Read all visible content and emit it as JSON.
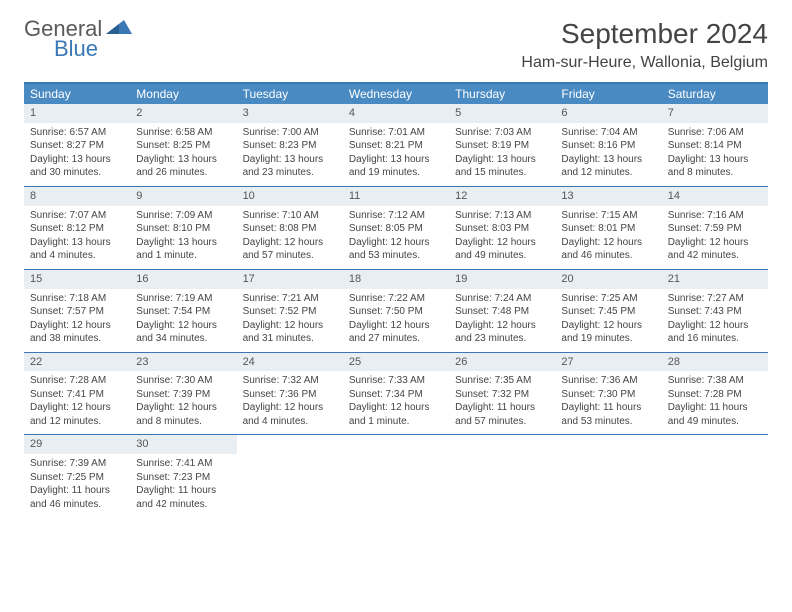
{
  "logo": {
    "general": "General",
    "blue": "Blue"
  },
  "title": "September 2024",
  "location": "Ham-sur-Heure, Wallonia, Belgium",
  "colors": {
    "header_bg": "#4a8ac2",
    "border": "#3a78b5",
    "daynum_bg": "#e9eef3",
    "text": "#454545"
  },
  "day_names": [
    "Sunday",
    "Monday",
    "Tuesday",
    "Wednesday",
    "Thursday",
    "Friday",
    "Saturday"
  ],
  "days": [
    {
      "n": "1",
      "sr": "Sunrise: 6:57 AM",
      "ss": "Sunset: 8:27 PM",
      "dl": "Daylight: 13 hours and 30 minutes."
    },
    {
      "n": "2",
      "sr": "Sunrise: 6:58 AM",
      "ss": "Sunset: 8:25 PM",
      "dl": "Daylight: 13 hours and 26 minutes."
    },
    {
      "n": "3",
      "sr": "Sunrise: 7:00 AM",
      "ss": "Sunset: 8:23 PM",
      "dl": "Daylight: 13 hours and 23 minutes."
    },
    {
      "n": "4",
      "sr": "Sunrise: 7:01 AM",
      "ss": "Sunset: 8:21 PM",
      "dl": "Daylight: 13 hours and 19 minutes."
    },
    {
      "n": "5",
      "sr": "Sunrise: 7:03 AM",
      "ss": "Sunset: 8:19 PM",
      "dl": "Daylight: 13 hours and 15 minutes."
    },
    {
      "n": "6",
      "sr": "Sunrise: 7:04 AM",
      "ss": "Sunset: 8:16 PM",
      "dl": "Daylight: 13 hours and 12 minutes."
    },
    {
      "n": "7",
      "sr": "Sunrise: 7:06 AM",
      "ss": "Sunset: 8:14 PM",
      "dl": "Daylight: 13 hours and 8 minutes."
    },
    {
      "n": "8",
      "sr": "Sunrise: 7:07 AM",
      "ss": "Sunset: 8:12 PM",
      "dl": "Daylight: 13 hours and 4 minutes."
    },
    {
      "n": "9",
      "sr": "Sunrise: 7:09 AM",
      "ss": "Sunset: 8:10 PM",
      "dl": "Daylight: 13 hours and 1 minute."
    },
    {
      "n": "10",
      "sr": "Sunrise: 7:10 AM",
      "ss": "Sunset: 8:08 PM",
      "dl": "Daylight: 12 hours and 57 minutes."
    },
    {
      "n": "11",
      "sr": "Sunrise: 7:12 AM",
      "ss": "Sunset: 8:05 PM",
      "dl": "Daylight: 12 hours and 53 minutes."
    },
    {
      "n": "12",
      "sr": "Sunrise: 7:13 AM",
      "ss": "Sunset: 8:03 PM",
      "dl": "Daylight: 12 hours and 49 minutes."
    },
    {
      "n": "13",
      "sr": "Sunrise: 7:15 AM",
      "ss": "Sunset: 8:01 PM",
      "dl": "Daylight: 12 hours and 46 minutes."
    },
    {
      "n": "14",
      "sr": "Sunrise: 7:16 AM",
      "ss": "Sunset: 7:59 PM",
      "dl": "Daylight: 12 hours and 42 minutes."
    },
    {
      "n": "15",
      "sr": "Sunrise: 7:18 AM",
      "ss": "Sunset: 7:57 PM",
      "dl": "Daylight: 12 hours and 38 minutes."
    },
    {
      "n": "16",
      "sr": "Sunrise: 7:19 AM",
      "ss": "Sunset: 7:54 PM",
      "dl": "Daylight: 12 hours and 34 minutes."
    },
    {
      "n": "17",
      "sr": "Sunrise: 7:21 AM",
      "ss": "Sunset: 7:52 PM",
      "dl": "Daylight: 12 hours and 31 minutes."
    },
    {
      "n": "18",
      "sr": "Sunrise: 7:22 AM",
      "ss": "Sunset: 7:50 PM",
      "dl": "Daylight: 12 hours and 27 minutes."
    },
    {
      "n": "19",
      "sr": "Sunrise: 7:24 AM",
      "ss": "Sunset: 7:48 PM",
      "dl": "Daylight: 12 hours and 23 minutes."
    },
    {
      "n": "20",
      "sr": "Sunrise: 7:25 AM",
      "ss": "Sunset: 7:45 PM",
      "dl": "Daylight: 12 hours and 19 minutes."
    },
    {
      "n": "21",
      "sr": "Sunrise: 7:27 AM",
      "ss": "Sunset: 7:43 PM",
      "dl": "Daylight: 12 hours and 16 minutes."
    },
    {
      "n": "22",
      "sr": "Sunrise: 7:28 AM",
      "ss": "Sunset: 7:41 PM",
      "dl": "Daylight: 12 hours and 12 minutes."
    },
    {
      "n": "23",
      "sr": "Sunrise: 7:30 AM",
      "ss": "Sunset: 7:39 PM",
      "dl": "Daylight: 12 hours and 8 minutes."
    },
    {
      "n": "24",
      "sr": "Sunrise: 7:32 AM",
      "ss": "Sunset: 7:36 PM",
      "dl": "Daylight: 12 hours and 4 minutes."
    },
    {
      "n": "25",
      "sr": "Sunrise: 7:33 AM",
      "ss": "Sunset: 7:34 PM",
      "dl": "Daylight: 12 hours and 1 minute."
    },
    {
      "n": "26",
      "sr": "Sunrise: 7:35 AM",
      "ss": "Sunset: 7:32 PM",
      "dl": "Daylight: 11 hours and 57 minutes."
    },
    {
      "n": "27",
      "sr": "Sunrise: 7:36 AM",
      "ss": "Sunset: 7:30 PM",
      "dl": "Daylight: 11 hours and 53 minutes."
    },
    {
      "n": "28",
      "sr": "Sunrise: 7:38 AM",
      "ss": "Sunset: 7:28 PM",
      "dl": "Daylight: 11 hours and 49 minutes."
    },
    {
      "n": "29",
      "sr": "Sunrise: 7:39 AM",
      "ss": "Sunset: 7:25 PM",
      "dl": "Daylight: 11 hours and 46 minutes."
    },
    {
      "n": "30",
      "sr": "Sunrise: 7:41 AM",
      "ss": "Sunset: 7:23 PM",
      "dl": "Daylight: 11 hours and 42 minutes."
    }
  ]
}
